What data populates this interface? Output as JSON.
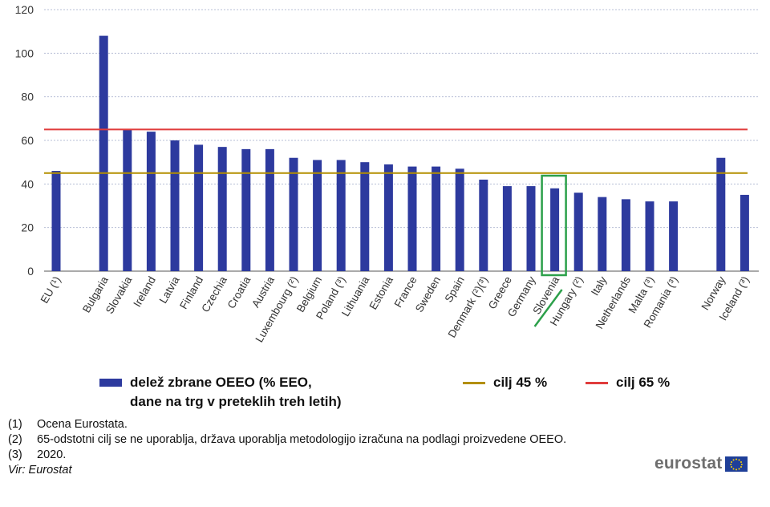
{
  "chart_data": {
    "type": "bar",
    "categories": [
      "EU (¹)",
      "Bulgaria",
      "Slovakia",
      "Ireland",
      "Latvia",
      "Finland",
      "Czechia",
      "Croatia",
      "Austria",
      "Luxembourg (²)",
      "Belgium",
      "Poland (³)",
      "Lithuania",
      "Estonia",
      "France",
      "Sweden",
      "Spain",
      "Denmark (²)(³)",
      "Greece",
      "Germany",
      "Slovenia",
      "Hungary (²)",
      "Italy",
      "Netherlands",
      "Malta (³)",
      "Romania (³)",
      "Norway",
      "Iceland (³)"
    ],
    "slots": [
      0,
      2,
      3,
      4,
      5,
      6,
      7,
      8,
      9,
      10,
      11,
      12,
      13,
      14,
      15,
      16,
      17,
      18,
      19,
      20,
      21,
      22,
      23,
      24,
      25,
      26,
      28,
      29
    ],
    "series": [
      {
        "name": "delež zbrane OEEO (% EEO, dane na trg v preteklih treh letih)",
        "color": "#2d3a9e",
        "values": [
          46,
          108,
          65,
          64,
          60,
          58,
          57,
          56,
          56,
          52,
          51,
          51,
          50,
          49,
          48,
          48,
          47,
          42,
          39,
          39,
          38,
          36,
          34,
          33,
          32,
          32,
          52,
          35
        ]
      }
    ],
    "reference_lines": [
      {
        "name": "cilj 45 %",
        "value": 45,
        "color": "#b38f00"
      },
      {
        "name": "cilj 65 %",
        "value": 65,
        "color": "#e03c3c"
      }
    ],
    "highlight": {
      "category": "Slovenia",
      "color": "#2ca04a"
    },
    "ylim": [
      0,
      120
    ],
    "yticks": [
      0,
      20,
      40,
      60,
      80,
      100,
      120
    ],
    "grid": true
  },
  "legend": {
    "bar_line1": "delež zbrane OEEO (% EEO,",
    "bar_line2": "dane na trg v preteklih treh letih)",
    "target45": "cilj 45 %",
    "target65": "cilj 65 %"
  },
  "notes": [
    {
      "num": "(1)",
      "text": "Ocena Eurostata."
    },
    {
      "num": "(2)",
      "text": "65-odstotni cilj se ne uporablja, država uporablja metodologijo izračuna na podlagi proizvedene OEEO."
    },
    {
      "num": "(3)",
      "text": "2020."
    }
  ],
  "source": "Vir: Eurostat",
  "brand": "eurostat"
}
